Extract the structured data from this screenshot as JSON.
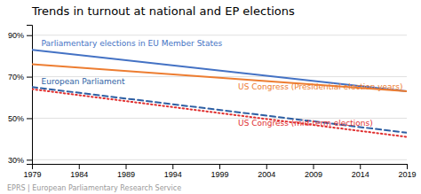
{
  "chart_data": {
    "type": "line",
    "title": "Trends in turnout at national and EP elections",
    "subtitle": "EPRS | European Parliamentary Research Service",
    "x": [
      1979,
      2019
    ],
    "xlim": [
      1979,
      2019
    ],
    "xticks": [
      1979,
      1984,
      1989,
      1994,
      1999,
      2004,
      2009,
      2014,
      2019
    ],
    "ylim": [
      28,
      95
    ],
    "yticks": [
      {
        "value": 30,
        "label": "30%"
      },
      {
        "value": 50,
        "label": "50%"
      },
      {
        "value": 70,
        "label": "70%"
      },
      {
        "value": 90,
        "label": "90%"
      }
    ],
    "grid": true,
    "series": [
      {
        "name": "Parliamentary elections in EU Member States",
        "color": "#4472C4",
        "line_style": "solid",
        "values": [
          83,
          63
        ]
      },
      {
        "name": "US Congress (Presidential election years)",
        "color": "#ED7D31",
        "line_style": "solid",
        "values": [
          76,
          63
        ]
      },
      {
        "name": "European Parliament",
        "color": "#2E5FA3",
        "line_style": "dashed",
        "values": [
          65,
          43
        ]
      },
      {
        "name": "US Congress (mid-term elections)",
        "color": "#E03030",
        "line_style": "dotted",
        "values": [
          64,
          41
        ]
      }
    ]
  }
}
